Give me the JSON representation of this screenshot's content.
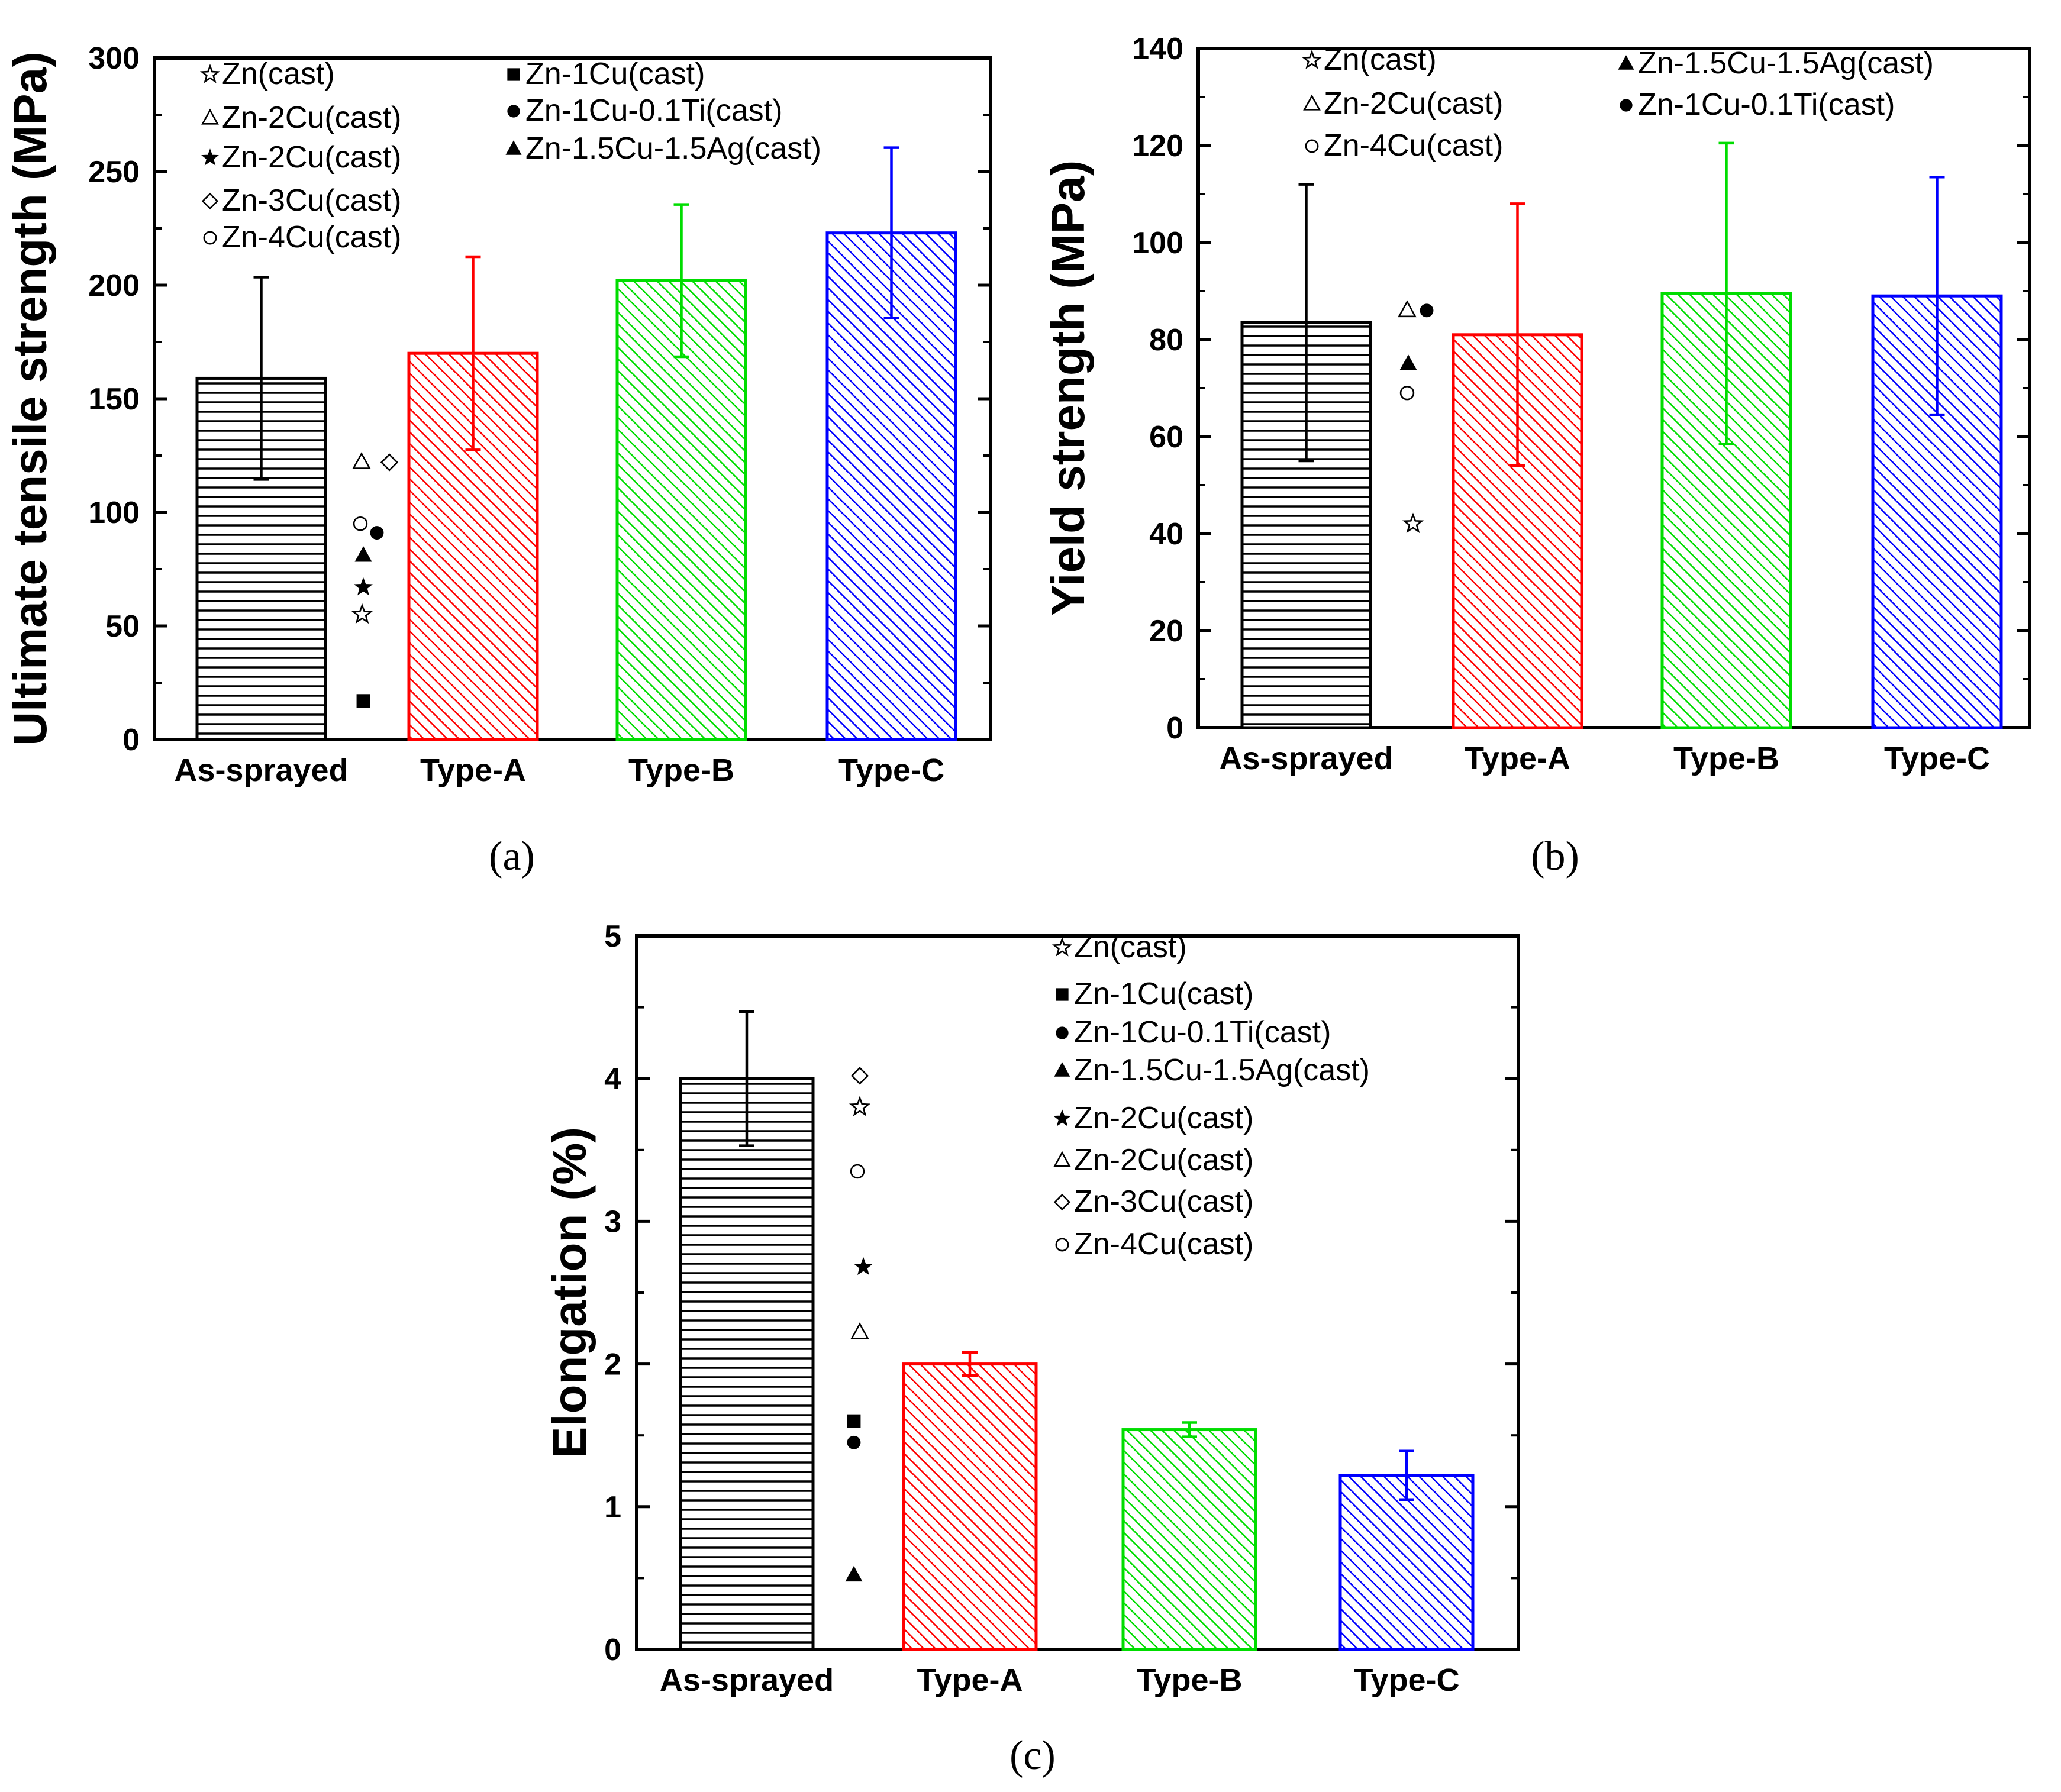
{
  "chart_data": [
    {
      "panel": "a",
      "type": "bar",
      "panel_label": "(a)",
      "ylabel": "Ultimate tensile strength  (MPa)",
      "ylim": [
        0,
        300
      ],
      "yticks": [
        0,
        50,
        100,
        150,
        200,
        250,
        300
      ],
      "categories": [
        "As-sprayed",
        "Type-A",
        "Type-B",
        "Type-C"
      ],
      "values": [
        159,
        170,
        202,
        223
      ],
      "errors": [
        44.5,
        42.5,
        33.5,
        37.5
      ],
      "bar_colors": [
        "#000000",
        "#ff0000",
        "#00dd00",
        "#0000ff"
      ],
      "bar_patterns": [
        "horizontal",
        "diagonal",
        "diagonal",
        "diagonal"
      ],
      "legend": [
        {
          "marker": "star-open",
          "label": "Zn(cast)"
        },
        {
          "marker": "triangle-open",
          "label": "Zn-2Cu(cast)"
        },
        {
          "marker": "star-filled",
          "label": "Zn-2Cu(cast)"
        },
        {
          "marker": "diamond-open",
          "label": "Zn-3Cu(cast)"
        },
        {
          "marker": "circle-open",
          "label": "Zn-4Cu(cast)"
        },
        {
          "marker": "square-filled",
          "label": "Zn-1Cu(cast)"
        },
        {
          "marker": "circle-filled",
          "label": "Zn-1Cu-0.1Ti(cast)"
        },
        {
          "marker": "triangle-filled",
          "label": "Zn-1.5Cu-1.5Ag(cast)"
        }
      ],
      "reference_points": [
        {
          "marker": "triangle-open",
          "value": 122
        },
        {
          "marker": "diamond-open",
          "value": 122
        },
        {
          "marker": "circle-open",
          "value": 95
        },
        {
          "marker": "circle-filled",
          "value": 91
        },
        {
          "marker": "triangle-filled",
          "value": 81
        },
        {
          "marker": "star-filled",
          "value": 67
        },
        {
          "marker": "star-open",
          "value": 55
        },
        {
          "marker": "square-filled",
          "value": 17
        }
      ]
    },
    {
      "panel": "b",
      "type": "bar",
      "panel_label": "(b)",
      "ylabel": "Yield strength (MPa)",
      "ylim": [
        0,
        140
      ],
      "yticks": [
        0,
        20,
        40,
        60,
        80,
        100,
        120,
        140
      ],
      "categories": [
        "As-sprayed",
        "Type-A",
        "Type-B",
        "Type-C"
      ],
      "values": [
        83.5,
        81,
        89.5,
        89
      ],
      "errors": [
        28.5,
        27,
        31,
        24.5
      ],
      "bar_colors": [
        "#000000",
        "#ff0000",
        "#00dd00",
        "#0000ff"
      ],
      "bar_patterns": [
        "horizontal",
        "diagonal",
        "diagonal",
        "diagonal"
      ],
      "legend": [
        {
          "marker": "star-open",
          "label": "Zn(cast)"
        },
        {
          "marker": "triangle-open",
          "label": "Zn-2Cu(cast)"
        },
        {
          "marker": "circle-open",
          "label": "Zn-4Cu(cast)"
        },
        {
          "marker": "triangle-filled",
          "label": "Zn-1.5Cu-1.5Ag(cast)"
        },
        {
          "marker": "circle-filled",
          "label": "Zn-1Cu-0.1Ti(cast)"
        }
      ],
      "reference_points": [
        {
          "marker": "triangle-open",
          "value": 86
        },
        {
          "marker": "circle-filled",
          "value": 86
        },
        {
          "marker": "triangle-filled",
          "value": 75
        },
        {
          "marker": "circle-open",
          "value": 69
        },
        {
          "marker": "star-open",
          "value": 42
        }
      ]
    },
    {
      "panel": "c",
      "type": "bar",
      "panel_label": "(c)",
      "ylabel": "Elongation (%)",
      "ylim": [
        0,
        5
      ],
      "yticks": [
        0,
        1,
        2,
        3,
        4,
        5
      ],
      "categories": [
        "As-sprayed",
        "Type-A",
        "Type-B",
        "Type-C"
      ],
      "values": [
        4.0,
        2.0,
        1.54,
        1.22
      ],
      "errors": [
        0.47,
        0.08,
        0.05,
        0.17
      ],
      "bar_colors": [
        "#000000",
        "#ff0000",
        "#00dd00",
        "#0000ff"
      ],
      "bar_patterns": [
        "horizontal",
        "diagonal",
        "diagonal",
        "diagonal"
      ],
      "legend": [
        {
          "marker": "star-open",
          "label": "Zn(cast)"
        },
        {
          "marker": "square-filled",
          "label": "Zn-1Cu(cast)"
        },
        {
          "marker": "circle-filled",
          "label": "Zn-1Cu-0.1Ti(cast)"
        },
        {
          "marker": "triangle-filled",
          "label": "Zn-1.5Cu-1.5Ag(cast)"
        },
        {
          "marker": "star-filled",
          "label": "Zn-2Cu(cast)"
        },
        {
          "marker": "triangle-open",
          "label": "Zn-2Cu(cast)"
        },
        {
          "marker": "diamond-open",
          "label": "Zn-3Cu(cast)"
        },
        {
          "marker": "circle-open",
          "label": "Zn-4Cu(cast)"
        }
      ],
      "reference_points": [
        {
          "marker": "diamond-open",
          "value": 4.02
        },
        {
          "marker": "star-open",
          "value": 3.8
        },
        {
          "marker": "circle-open",
          "value": 3.35
        },
        {
          "marker": "star-filled",
          "value": 2.68
        },
        {
          "marker": "triangle-open",
          "value": 2.22
        },
        {
          "marker": "square-filled",
          "value": 1.6
        },
        {
          "marker": "circle-filled",
          "value": 1.45
        },
        {
          "marker": "triangle-filled",
          "value": 0.52
        }
      ]
    }
  ]
}
